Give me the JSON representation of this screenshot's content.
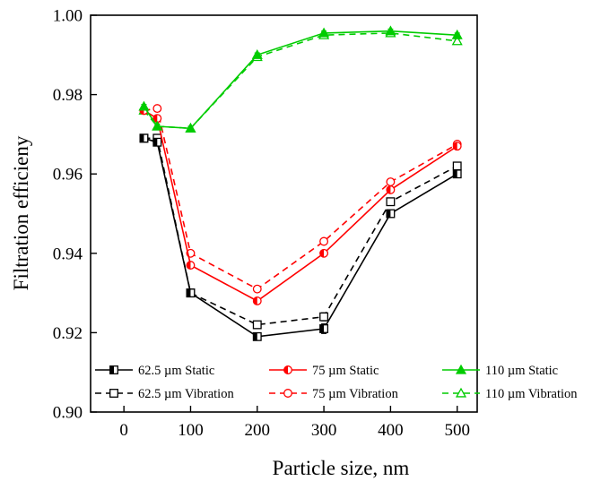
{
  "chart_data": {
    "type": "line",
    "xlabel": "Particle size, nm",
    "ylabel": "Filtration efficieny",
    "xlim": [
      -50,
      530
    ],
    "ylim": [
      0.9,
      1.0
    ],
    "xticks": [
      0,
      100,
      200,
      300,
      400,
      500
    ],
    "yticks": [
      0.9,
      0.92,
      0.94,
      0.96,
      0.98,
      1.0
    ],
    "xtick_labels": [
      "0",
      "100",
      "200",
      "300",
      "400",
      "500"
    ],
    "ytick_labels": [
      "0.90",
      "0.92",
      "0.94",
      "0.96",
      "0.98",
      "1.00"
    ],
    "grid": false,
    "legend_position": "bottom",
    "x": [
      30,
      50,
      100,
      200,
      300,
      400,
      500
    ],
    "series": [
      {
        "name": "62.5 µm Static",
        "color": "#000000",
        "dash": "solid",
        "marker": "square-half",
        "values": [
          0.969,
          0.968,
          0.93,
          0.919,
          0.921,
          0.95,
          0.96
        ],
        "errors": [
          0.0005,
          0.0005,
          0.0005,
          0.0005,
          0.0012,
          0.0005,
          0.0005
        ]
      },
      {
        "name": "75 µm Static",
        "color": "#ff0000",
        "dash": "solid",
        "marker": "circle-half",
        "values": [
          0.976,
          0.974,
          0.937,
          0.928,
          0.94,
          0.956,
          0.967
        ],
        "errors": [
          0.0005,
          0.0005,
          0.0005,
          0.0005,
          0.0005,
          0.0005,
          0.0005
        ]
      },
      {
        "name": "110 µm Static",
        "color": "#00cc00",
        "dash": "solid",
        "marker": "triangle-filled",
        "values": [
          0.977,
          0.972,
          0.9715,
          0.99,
          0.9955,
          0.996,
          0.995
        ],
        "errors": [
          0.0005,
          0.0005,
          0.0005,
          0.0005,
          0.0005,
          0.0005,
          0.0005
        ]
      },
      {
        "name": "62.5 µm Vibration",
        "color": "#000000",
        "dash": "dashed",
        "marker": "square-open",
        "values": [
          0.969,
          0.969,
          0.93,
          0.922,
          0.924,
          0.953,
          0.962
        ],
        "errors": [
          0.0005,
          0.0005,
          0.0005,
          0.0005,
          0.001,
          0.0005,
          0.0005
        ]
      },
      {
        "name": "75 µm Vibration",
        "color": "#ff0000",
        "dash": "dashed",
        "marker": "circle-open",
        "values": [
          0.976,
          0.9765,
          0.94,
          0.931,
          0.943,
          0.958,
          0.9675
        ],
        "errors": [
          0.0005,
          0.0005,
          0.0005,
          0.0005,
          0.0005,
          0.0005,
          0.0005
        ]
      },
      {
        "name": "110 µm Vibration",
        "color": "#00cc00",
        "dash": "dashed",
        "marker": "triangle-open",
        "values": [
          0.976,
          0.972,
          0.9715,
          0.9895,
          0.995,
          0.9955,
          0.9935
        ],
        "errors": [
          0.0005,
          0.0005,
          0.0005,
          0.0005,
          0.0005,
          0.0005,
          0.0005
        ]
      }
    ]
  }
}
